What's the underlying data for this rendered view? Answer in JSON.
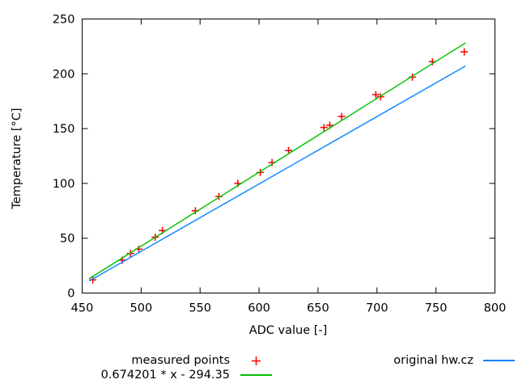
{
  "chart_data": {
    "type": "scatter",
    "title": "",
    "xlabel": "ADC value [-]",
    "ylabel": "Temperature [°C]",
    "xlim": [
      450,
      800
    ],
    "ylim": [
      0,
      250
    ],
    "x_ticks": [
      450,
      500,
      550,
      600,
      650,
      700,
      750,
      800
    ],
    "y_ticks": [
      0,
      50,
      100,
      150,
      200,
      250
    ],
    "grid": false,
    "legend_position": "below-plot, two columns",
    "series": [
      {
        "name": "measured points",
        "type": "points",
        "marker": "plus",
        "color": "#ff0000",
        "points": [
          [
            459,
            12
          ],
          [
            484,
            30
          ],
          [
            491,
            36
          ],
          [
            498,
            40
          ],
          [
            512,
            51
          ],
          [
            518,
            57
          ],
          [
            546,
            75
          ],
          [
            566,
            88
          ],
          [
            582,
            100
          ],
          [
            601,
            110
          ],
          [
            611,
            119
          ],
          [
            625,
            130
          ],
          [
            655,
            151
          ],
          [
            660,
            153
          ],
          [
            670,
            161
          ],
          [
            699,
            181
          ],
          [
            703,
            179
          ],
          [
            730,
            197
          ],
          [
            747,
            211
          ],
          [
            774,
            220
          ]
        ]
      },
      {
        "name": "0.674201 * x - 294.35",
        "type": "line",
        "color": "#00c000",
        "slope": 0.674201,
        "intercept": -294.35,
        "x_range": [
          456,
          775
        ]
      },
      {
        "name": "original hw.cz",
        "type": "line",
        "color": "#0080ff",
        "slope": 0.6147,
        "intercept": -269.3,
        "x_range": [
          456,
          775
        ]
      }
    ]
  }
}
